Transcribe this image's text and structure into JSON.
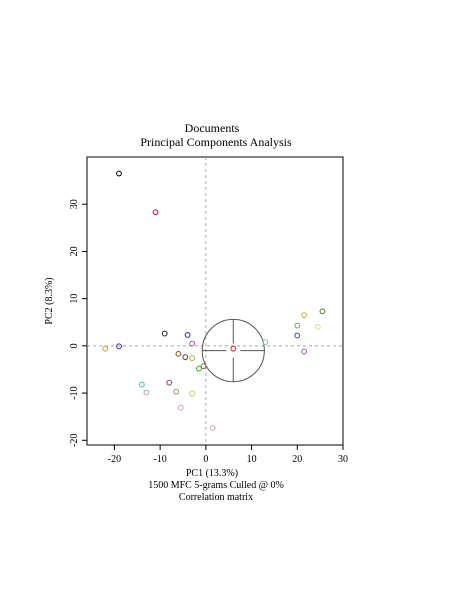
{
  "chart_data": {
    "type": "scatter",
    "title": "Documents",
    "subtitle": "Principal Components Analysis",
    "xlabel": "PC1 (13.3%)",
    "ylabel": "PC2 (8.3%)",
    "caption_lines": [
      "1500 MFC 5-grams Culled @ 0%",
      "Correlation matrix"
    ],
    "xlim": [
      -26,
      30
    ],
    "ylim": [
      -21,
      40
    ],
    "x_ticks": [
      -20,
      -10,
      0,
      10,
      20,
      30
    ],
    "y_ticks": [
      -20,
      -10,
      0,
      10,
      20,
      30
    ],
    "reference_lines": {
      "x": 0,
      "y": 0,
      "style": "dashed",
      "color": "#aaaaaa"
    },
    "circle": {
      "center": [
        6,
        -1
      ],
      "radius_x": 6.8,
      "radius_y": 6.6,
      "crosshair": true,
      "color": "#555555"
    },
    "points": [
      {
        "x": -19,
        "y": 36.5,
        "color": "#000000"
      },
      {
        "x": -11,
        "y": 28.3,
        "color": "#cc0044"
      },
      {
        "x": -9,
        "y": 2.6,
        "color": "#222222"
      },
      {
        "x": -4,
        "y": 2.3,
        "color": "#2222aa"
      },
      {
        "x": -3,
        "y": 0.5,
        "color": "#bb44bb"
      },
      {
        "x": -19,
        "y": -0.1,
        "color": "#3333aa"
      },
      {
        "x": -22,
        "y": -0.6,
        "color": "#dd9933"
      },
      {
        "x": -6,
        "y": -1.7,
        "color": "#884422"
      },
      {
        "x": -4.5,
        "y": -2.4,
        "color": "#444444"
      },
      {
        "x": -3,
        "y": -2.6,
        "color": "#aaaa44"
      },
      {
        "x": -1.5,
        "y": -4.8,
        "color": "#33aa33"
      },
      {
        "x": -0.5,
        "y": -4.3,
        "color": "#996633"
      },
      {
        "x": -14,
        "y": -8.2,
        "color": "#33cc99"
      },
      {
        "x": -8,
        "y": -7.8,
        "color": "#aa3355"
      },
      {
        "x": -13,
        "y": -9.9,
        "color": "#aaaaaa"
      },
      {
        "x": -6.5,
        "y": -9.7,
        "color": "#aa8855"
      },
      {
        "x": -3,
        "y": -10.1,
        "color": "#cccc44"
      },
      {
        "x": -5.5,
        "y": -13.1,
        "color": "#cc99cc"
      },
      {
        "x": 1.5,
        "y": -17.4,
        "color": "#ccaaaa"
      },
      {
        "x": 6,
        "y": -0.6,
        "color": "#cc2222"
      },
      {
        "x": 13,
        "y": 0.8,
        "color": "#66ccaa"
      },
      {
        "x": 20,
        "y": 2.2,
        "color": "#2244cc"
      },
      {
        "x": 20,
        "y": 4.3,
        "color": "#33cc33"
      },
      {
        "x": 21.5,
        "y": 6.5,
        "color": "#ddaa22"
      },
      {
        "x": 24.5,
        "y": 4.0,
        "color": "#dddd66"
      },
      {
        "x": 25.5,
        "y": 7.3,
        "color": "#447722"
      },
      {
        "x": 21.5,
        "y": -1.2,
        "color": "#bb44cc"
      }
    ]
  }
}
